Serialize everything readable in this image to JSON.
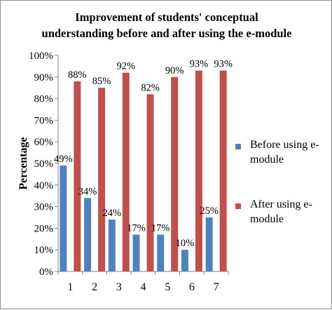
{
  "chart_data": {
    "type": "bar",
    "title_lines": [
      "Improvement of students' conceptual",
      "understanding before and after using the e-module"
    ],
    "xlabel": "",
    "ylabel": "Percentage",
    "ylim": [
      0,
      100
    ],
    "yticks": [
      "0%",
      "10%",
      "20%",
      "30%",
      "40%",
      "50%",
      "60%",
      "70%",
      "80%",
      "90%",
      "100%"
    ],
    "categories": [
      "1",
      "2",
      "3",
      "4",
      "5",
      "6",
      "7"
    ],
    "series": [
      {
        "name_lines": [
          "Before using e-",
          "module"
        ],
        "color": "#4f81bd",
        "values": [
          49,
          34,
          24,
          17,
          17,
          10,
          25
        ],
        "labels": [
          "49%",
          "34%",
          "24%",
          "17%",
          "17%",
          "10%",
          "25%"
        ]
      },
      {
        "name_lines": [
          "After using e-",
          "module"
        ],
        "color": "#c0504d",
        "values": [
          88,
          85,
          92,
          82,
          90,
          93,
          93
        ],
        "labels": [
          "88%",
          "85%",
          "92%",
          "82%",
          "90%",
          "93%",
          "93%"
        ]
      }
    ],
    "grid": false,
    "legend_position": "right"
  }
}
